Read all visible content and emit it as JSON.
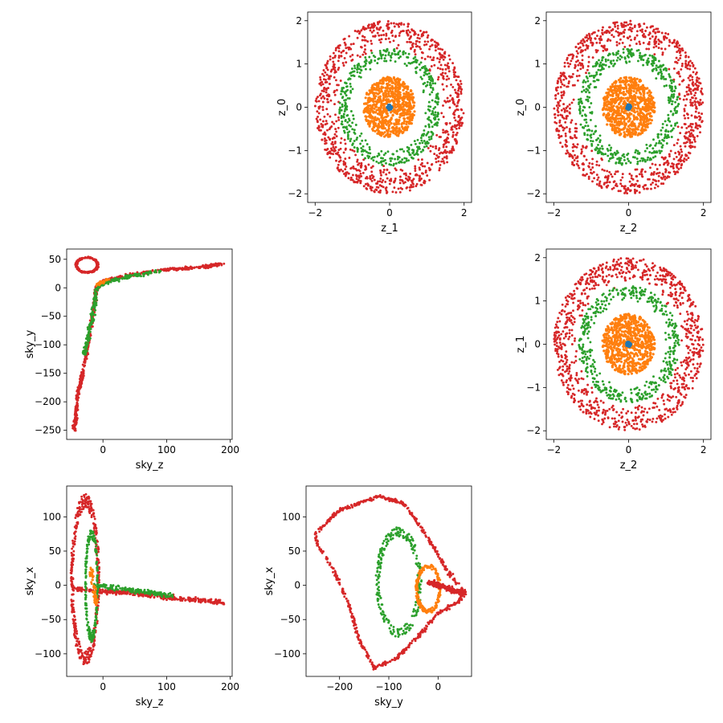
{
  "chart_data": [
    {
      "id": "z1_vs_z0",
      "type": "scatter",
      "xlabel": "z_1",
      "ylabel": "z_0",
      "xlim": [
        -2.2,
        2.2
      ],
      "ylim": [
        -2.2,
        2.2
      ],
      "xticks": [
        -2,
        0,
        2
      ],
      "yticks": [
        -2,
        -1,
        0,
        1,
        2
      ],
      "grid": false,
      "series": [
        {
          "kind": "ring",
          "color": "#d62728",
          "r_min": 1.35,
          "r_max": 2.0,
          "count": 900,
          "marker_size": 2.3
        },
        {
          "kind": "ring",
          "color": "#2ca02c",
          "r_min": 0.95,
          "r_max": 1.35,
          "count": 450,
          "marker_size": 2.3
        },
        {
          "kind": "ring",
          "color": "#ff7f0e",
          "r_min": 0.0,
          "r_max": 0.7,
          "count": 700,
          "marker_size": 2.6
        },
        {
          "kind": "ring",
          "color": "#1f77b4",
          "r_min": 0.0,
          "r_max": 0.06,
          "count": 40,
          "marker_size": 3.0
        }
      ]
    },
    {
      "id": "z2_vs_z0",
      "type": "scatter",
      "xlabel": "z_2",
      "ylabel": "z_0",
      "xlim": [
        -2.2,
        2.2
      ],
      "ylim": [
        -2.2,
        2.2
      ],
      "xticks": [
        -2,
        0,
        2
      ],
      "yticks": [
        -2,
        -1,
        0,
        1,
        2
      ],
      "grid": false,
      "series": [
        {
          "kind": "ring",
          "color": "#d62728",
          "r_min": 1.35,
          "r_max": 2.0,
          "count": 900,
          "marker_size": 2.3
        },
        {
          "kind": "ring",
          "color": "#2ca02c",
          "r_min": 0.95,
          "r_max": 1.35,
          "count": 450,
          "marker_size": 2.3
        },
        {
          "kind": "ring",
          "color": "#ff7f0e",
          "r_min": 0.0,
          "r_max": 0.7,
          "count": 700,
          "marker_size": 2.6
        },
        {
          "kind": "ring",
          "color": "#1f77b4",
          "r_min": 0.0,
          "r_max": 0.06,
          "count": 40,
          "marker_size": 3.0
        }
      ]
    },
    {
      "id": "skyz_vs_skyy",
      "type": "scatter",
      "xlabel": "sky_z",
      "ylabel": "sky_y",
      "xlim": [
        -57,
        203
      ],
      "ylim": [
        -266,
        68
      ],
      "xticks": [
        0,
        100,
        200
      ],
      "yticks": [
        -250,
        -200,
        -150,
        -100,
        -50,
        0,
        50
      ],
      "grid": false,
      "series": [
        {
          "kind": "path",
          "color": "#d62728",
          "count": 650,
          "spread": 4,
          "marker_size": 2.3,
          "path": [
            [
              -45,
              -250
            ],
            [
              -40,
              -190
            ],
            [
              -30,
              -140
            ],
            [
              -22,
              -90
            ],
            [
              -15,
              -40
            ],
            [
              -10,
              0
            ],
            [
              0,
              12
            ],
            [
              40,
              22
            ],
            [
              100,
              32
            ],
            [
              150,
              36
            ],
            [
              190,
              42
            ]
          ]
        },
        {
          "kind": "loop",
          "color": "#d62728",
          "count": 160,
          "marker_size": 2.3,
          "center": [
            -25,
            40
          ],
          "radius": [
            18,
            14
          ]
        },
        {
          "kind": "path",
          "color": "#2ca02c",
          "count": 260,
          "spread": 5,
          "marker_size": 2.3,
          "path": [
            [
              -30,
              -120
            ],
            [
              -22,
              -80
            ],
            [
              -15,
              -40
            ],
            [
              -10,
              0
            ],
            [
              5,
              10
            ],
            [
              40,
              20
            ],
            [
              90,
              30
            ]
          ]
        },
        {
          "kind": "path",
          "color": "#ff7f0e",
          "count": 40,
          "spread": 3,
          "marker_size": 2.3,
          "path": [
            [
              -12,
              5
            ],
            [
              10,
              15
            ]
          ]
        }
      ]
    },
    {
      "id": "z2_vs_z1",
      "type": "scatter",
      "xlabel": "z_2",
      "ylabel": "z_1",
      "xlim": [
        -2.2,
        2.2
      ],
      "ylim": [
        -2.2,
        2.2
      ],
      "xticks": [
        -2,
        0,
        2
      ],
      "yticks": [
        -2,
        -1,
        0,
        1,
        2
      ],
      "grid": false,
      "series": [
        {
          "kind": "ring",
          "color": "#d62728",
          "r_min": 1.35,
          "r_max": 2.0,
          "count": 900,
          "marker_size": 2.3
        },
        {
          "kind": "ring",
          "color": "#2ca02c",
          "r_min": 0.95,
          "r_max": 1.35,
          "count": 450,
          "marker_size": 2.3
        },
        {
          "kind": "ring",
          "color": "#ff7f0e",
          "r_min": 0.0,
          "r_max": 0.7,
          "count": 700,
          "marker_size": 2.6
        },
        {
          "kind": "ring",
          "color": "#1f77b4",
          "r_min": 0.0,
          "r_max": 0.06,
          "count": 40,
          "marker_size": 3.0
        }
      ]
    },
    {
      "id": "skyz_vs_skyx",
      "type": "scatter",
      "xlabel": "sky_z",
      "ylabel": "sky_x",
      "xlim": [
        -57,
        203
      ],
      "ylim": [
        -133,
        145
      ],
      "xticks": [
        0,
        100,
        200
      ],
      "yticks": [
        -100,
        -50,
        0,
        50,
        100
      ],
      "grid": false,
      "series": [
        {
          "kind": "loop",
          "color": "#d62728",
          "count": 420,
          "marker_size": 2.3,
          "center": [
            -28,
            8
          ],
          "radius": [
            22,
            122
          ]
        },
        {
          "kind": "path",
          "color": "#d62728",
          "count": 350,
          "spread": 5,
          "marker_size": 2.3,
          "path": [
            [
              -45,
              -5
            ],
            [
              -15,
              -8
            ],
            [
              30,
              -10
            ],
            [
              80,
              -15
            ],
            [
              130,
              -20
            ],
            [
              190,
              -25
            ]
          ]
        },
        {
          "kind": "loop",
          "color": "#2ca02c",
          "count": 220,
          "marker_size": 2.3,
          "center": [
            -18,
            0
          ],
          "radius": [
            10,
            80
          ]
        },
        {
          "kind": "path",
          "color": "#2ca02c",
          "count": 160,
          "spread": 5,
          "marker_size": 2.3,
          "path": [
            [
              -15,
              0
            ],
            [
              30,
              -5
            ],
            [
              70,
              -10
            ],
            [
              110,
              -15
            ]
          ]
        },
        {
          "kind": "path",
          "color": "#ff7f0e",
          "count": 60,
          "spread": 4,
          "marker_size": 2.3,
          "path": [
            [
              -20,
              30
            ],
            [
              -15,
              0
            ],
            [
              -10,
              -30
            ]
          ]
        }
      ]
    },
    {
      "id": "skyy_vs_skyx",
      "type": "scatter",
      "xlabel": "sky_y",
      "ylabel": "sky_x",
      "xlim": [
        -268,
        68
      ],
      "ylim": [
        -133,
        145
      ],
      "xticks": [
        -200,
        -100,
        0
      ],
      "yticks": [
        -100,
        -50,
        0,
        50,
        100
      ],
      "grid": false,
      "series": [
        {
          "kind": "blob",
          "color": "#d62728",
          "count": 650,
          "marker_size": 2.3,
          "outline": [
            [
              -250,
              75
            ],
            [
              -200,
              110
            ],
            [
              -120,
              130
            ],
            [
              -70,
              120
            ],
            [
              -30,
              80
            ],
            [
              20,
              20
            ],
            [
              55,
              -10
            ],
            [
              40,
              -25
            ],
            [
              0,
              -40
            ],
            [
              -40,
              -75
            ],
            [
              -90,
              -110
            ],
            [
              -130,
              -120
            ],
            [
              -160,
              -80
            ],
            [
              -180,
              -30
            ],
            [
              -210,
              20
            ],
            [
              -245,
              60
            ]
          ]
        },
        {
          "kind": "loop",
          "color": "#2ca02c",
          "count": 260,
          "marker_size": 2.3,
          "center": [
            -80,
            5
          ],
          "radius": [
            45,
            78
          ]
        },
        {
          "kind": "loop",
          "color": "#ff7f0e",
          "count": 220,
          "marker_size": 2.3,
          "center": [
            -20,
            -5
          ],
          "radius": [
            25,
            35
          ]
        },
        {
          "kind": "path",
          "color": "#d62728",
          "count": 220,
          "spread": 6,
          "marker_size": 2.3,
          "path": [
            [
              -20,
              5
            ],
            [
              10,
              -2
            ],
            [
              35,
              -8
            ],
            [
              55,
              -12
            ]
          ]
        }
      ]
    }
  ]
}
